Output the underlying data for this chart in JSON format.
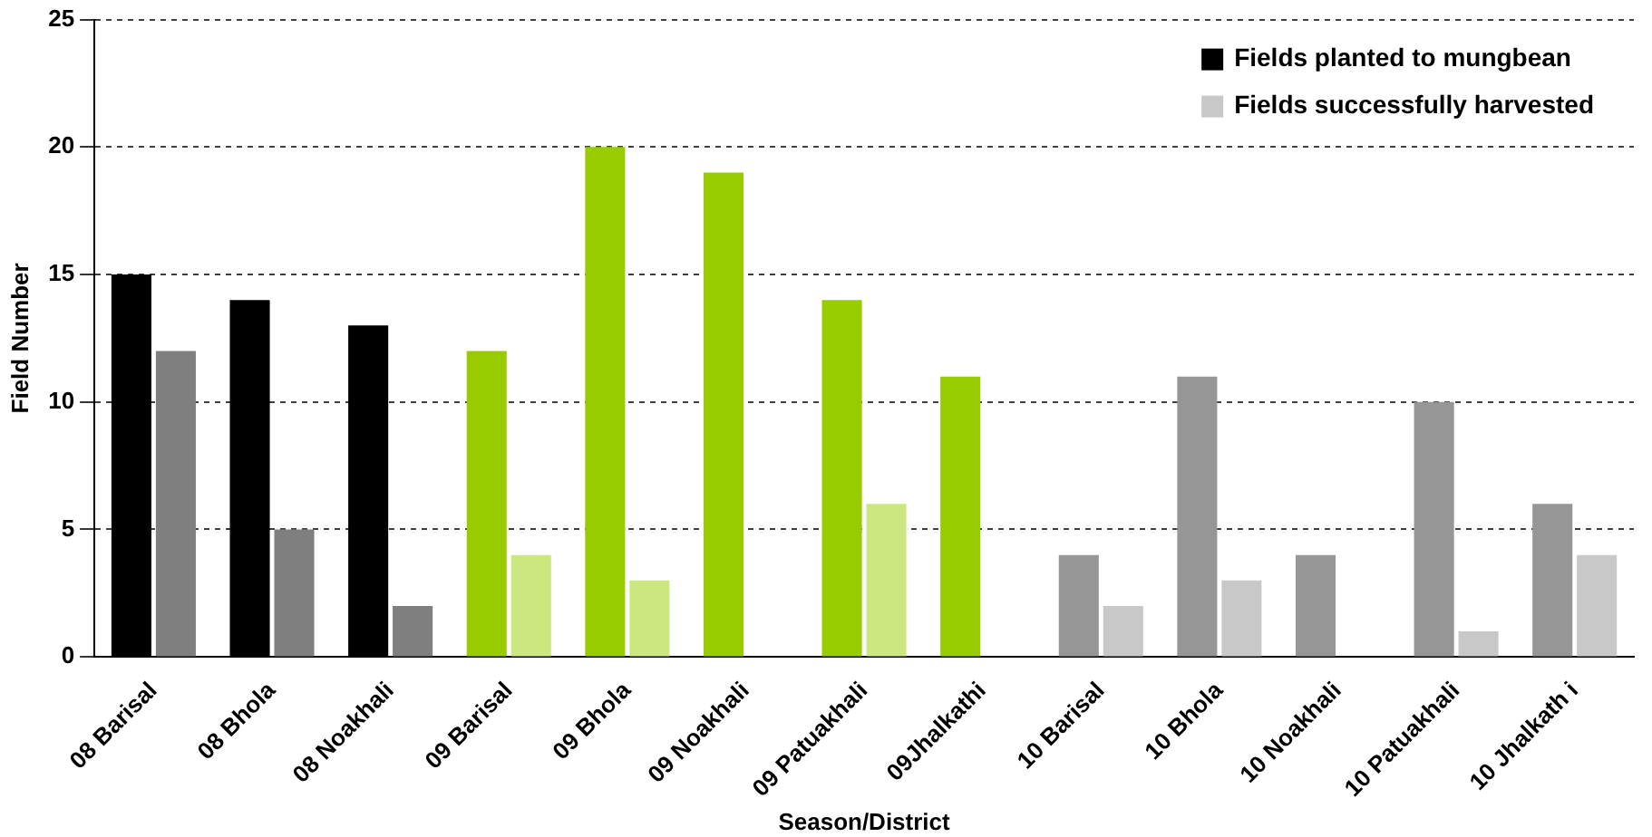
{
  "chart_data": {
    "type": "bar",
    "xlabel": "Season/District",
    "ylabel": "Field Number",
    "categories": [
      "08 Barisal",
      "08 Bhola",
      "08 Noakhali",
      "09 Barisal",
      "09 Bhola",
      "09 Noakhali",
      "09 Patuakhali",
      "09Jhalkathi",
      "10 Barisal",
      "10 Bhola",
      "10 Noakhali",
      "10 Patuakhali",
      "10 Jhalkath i"
    ],
    "series": [
      {
        "name": "Fields planted to mungbean",
        "color": "#000000",
        "colors": [
          "#000000",
          "#000000",
          "#000000",
          "#99cc00",
          "#99cc00",
          "#99cc00",
          "#99cc00",
          "#99cc00",
          "#969696",
          "#969696",
          "#969696",
          "#969696",
          "#969696"
        ],
        "values": [
          15,
          14,
          13,
          12,
          20,
          19,
          14,
          11,
          4,
          11,
          4,
          10,
          6
        ]
      },
      {
        "name": "Fields successfully harvested",
        "color": "#c8c8c8",
        "colors": [
          "#7f7f7f",
          "#7f7f7f",
          "#7f7f7f",
          "#cce680",
          "#cce680",
          "#cce680",
          "#cce680",
          "#cce680",
          "#c8c8c8",
          "#c8c8c8",
          "#c8c8c8",
          "#c8c8c8",
          "#c8c8c8"
        ],
        "values": [
          12,
          5,
          2,
          4,
          3,
          null,
          6,
          null,
          2,
          3,
          0,
          1,
          4
        ]
      }
    ],
    "ylim": [
      0,
      25
    ],
    "yticks": [
      0,
      5,
      10,
      15,
      20,
      25
    ],
    "grid": "y",
    "legend": "top right"
  }
}
